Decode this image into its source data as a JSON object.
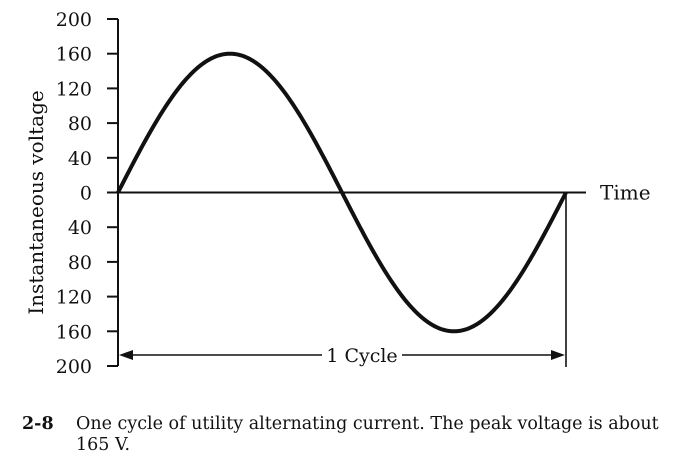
{
  "chart_data": {
    "type": "line",
    "ylabel": "Instantaneous voltage",
    "xlabel": "Time",
    "ylim": [
      -200,
      200
    ],
    "y_ticks": [
      200,
      160,
      120,
      80,
      40,
      0,
      -40,
      -80,
      -120,
      -160,
      -200
    ],
    "y_tick_labels": [
      "200",
      "160",
      "120",
      "80",
      "40",
      "0",
      "40",
      "80",
      "120",
      "160",
      "200"
    ],
    "x": [
      0,
      0.0625,
      0.125,
      0.1875,
      0.25,
      0.3125,
      0.375,
      0.4375,
      0.5,
      0.5625,
      0.625,
      0.6875,
      0.75,
      0.8125,
      0.875,
      0.9375,
      1
    ],
    "series": [
      {
        "values": [
          0,
          61,
          113,
          148,
          160,
          148,
          113,
          61,
          0,
          -61,
          -113,
          -148,
          -160,
          -148,
          -113,
          -61,
          0
        ]
      }
    ],
    "annotations": [
      {
        "text": "1 Cycle",
        "type": "double-arrow",
        "from_x": 0,
        "to_x": 1
      }
    ],
    "grid": false
  },
  "caption": {
    "number": "2-8",
    "text": "One cycle of utility alternating current. The peak voltage is about 165 V."
  }
}
